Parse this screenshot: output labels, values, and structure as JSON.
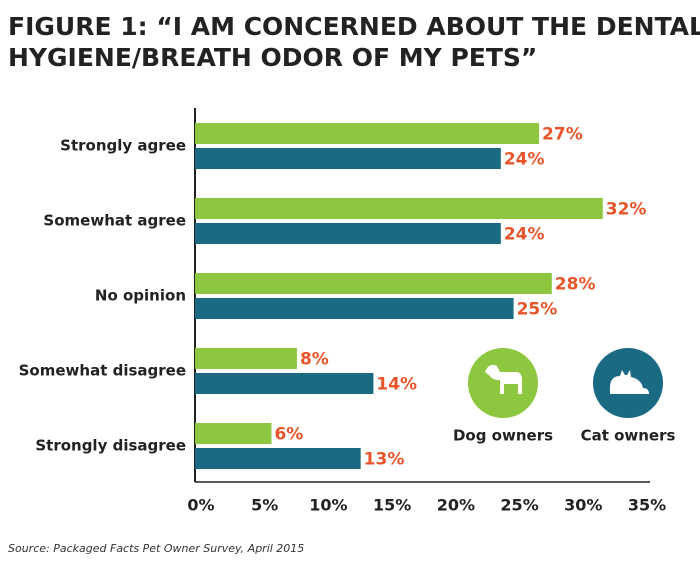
{
  "chart_data": {
    "type": "bar",
    "orientation": "horizontal",
    "title": [
      "FIGURE 1: “I AM CONCERNED ABOUT THE DENTAL",
      "HYGIENE/BREATH ODOR OF MY PETS”"
    ],
    "categories": [
      "Strongly agree",
      "Somewhat agree",
      "No opinion",
      "Somewhat disagree",
      "Strongly disagree"
    ],
    "series": [
      {
        "name": "Dog owners",
        "color": "#8dc63f",
        "values": [
          27,
          32,
          28,
          8,
          6
        ],
        "value_labels": [
          "27%",
          "32%",
          "28%",
          "8%",
          "6%"
        ]
      },
      {
        "name": "Cat owners",
        "color": "#1b6a84",
        "values": [
          24,
          24,
          25,
          14,
          13
        ],
        "value_labels": [
          "24%",
          "24%",
          "25%",
          "14%",
          "13%"
        ]
      }
    ],
    "xlim": [
      0,
      35
    ],
    "xticks": [
      {
        "value": 0,
        "label": "0%"
      },
      {
        "value": 5,
        "label": "5%"
      },
      {
        "value": 10,
        "label": "10%"
      },
      {
        "value": 15,
        "label": "15%"
      },
      {
        "value": 20,
        "label": "20%"
      },
      {
        "value": 25,
        "label": "25%"
      },
      {
        "value": 30,
        "label": "30%"
      },
      {
        "value": 35,
        "label": "35%"
      }
    ],
    "source": "Source: Packaged Facts Pet Owner Survey, April 2015"
  }
}
